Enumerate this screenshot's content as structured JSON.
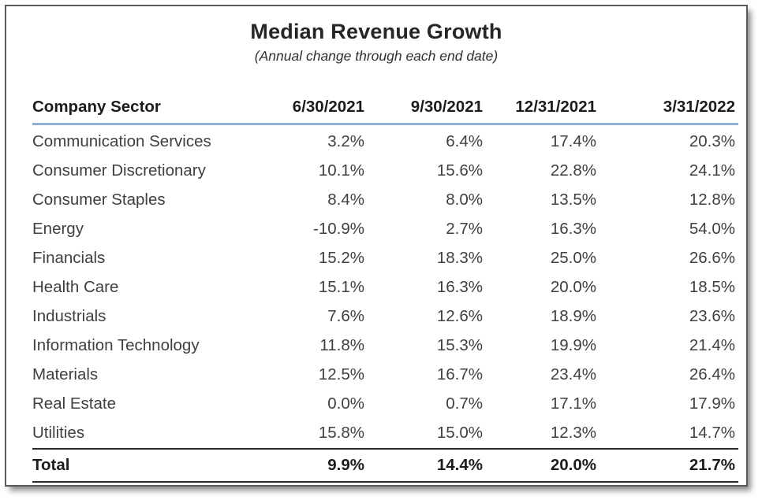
{
  "title": "Median Revenue Growth",
  "subtitle": "(Annual change through each end date)",
  "colors": {
    "header_underline": "#94b0d8",
    "total_rule": "#2b2b2b",
    "body_text": "#3f3f3f",
    "header_text": "#1c1c1c"
  },
  "chart_data": {
    "type": "table",
    "title": "Median Revenue Growth",
    "subtitle": "(Annual change through each end date)",
    "columns": [
      "Company Sector",
      "6/30/2021",
      "9/30/2021",
      "12/31/2021",
      "3/31/2022"
    ],
    "rows": [
      {
        "sector": "Communication Services",
        "values": [
          "3.2%",
          "6.4%",
          "17.4%",
          "20.3%"
        ]
      },
      {
        "sector": "Consumer Discretionary",
        "values": [
          "10.1%",
          "15.6%",
          "22.8%",
          "24.1%"
        ]
      },
      {
        "sector": "Consumer Staples",
        "values": [
          "8.4%",
          "8.0%",
          "13.5%",
          "12.8%"
        ]
      },
      {
        "sector": "Energy",
        "values": [
          "-10.9%",
          "2.7%",
          "16.3%",
          "54.0%"
        ]
      },
      {
        "sector": "Financials",
        "values": [
          "15.2%",
          "18.3%",
          "25.0%",
          "26.6%"
        ]
      },
      {
        "sector": "Health Care",
        "values": [
          "15.1%",
          "16.3%",
          "20.0%",
          "18.5%"
        ]
      },
      {
        "sector": "Industrials",
        "values": [
          "7.6%",
          "12.6%",
          "18.9%",
          "23.6%"
        ]
      },
      {
        "sector": "Information Technology",
        "values": [
          "11.8%",
          "15.3%",
          "19.9%",
          "21.4%"
        ]
      },
      {
        "sector": "Materials",
        "values": [
          "12.5%",
          "16.7%",
          "23.4%",
          "26.4%"
        ]
      },
      {
        "sector": "Real Estate",
        "values": [
          "0.0%",
          "0.7%",
          "17.1%",
          "17.9%"
        ]
      },
      {
        "sector": "Utilities",
        "values": [
          "15.8%",
          "15.0%",
          "12.3%",
          "14.7%"
        ]
      }
    ],
    "total": {
      "label": "Total",
      "values": [
        "9.9%",
        "14.4%",
        "20.0%",
        "21.7%"
      ]
    }
  }
}
